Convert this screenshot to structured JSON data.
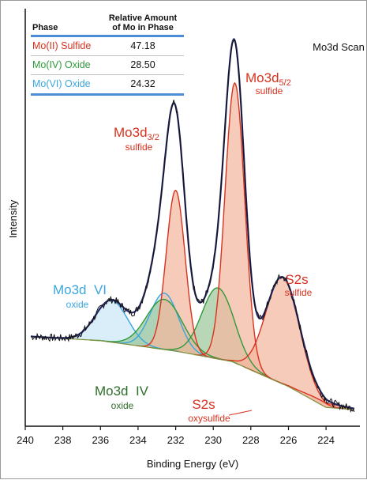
{
  "table": {
    "header_phase": "Phase",
    "header_amount_line1": "Relative Amount",
    "header_amount_line2": "of Mo in Phase",
    "rows": [
      {
        "phase": "Mo(II) Sulfide",
        "amount": "47.18",
        "color": "#d8321f"
      },
      {
        "phase": "Mo(IV) Oxide",
        "amount": "28.50",
        "color": "#2f9a3c"
      },
      {
        "phase": "Mo(VI) Oxide",
        "amount": "24.32",
        "color": "#3aa6dd"
      }
    ]
  },
  "chart_data": {
    "type": "area",
    "title": "Mo3d Scan",
    "xlabel": "Binding Energy (eV)",
    "ylabel": "Intensity",
    "x_reversed": true,
    "xlim": [
      240,
      222.2
    ],
    "ylim": [
      0,
      1
    ],
    "xticks": [
      "240",
      "238",
      "236",
      "234",
      "232",
      "230",
      "228",
      "226",
      "224"
    ],
    "xtick_values": [
      240,
      238,
      236,
      234,
      232,
      230,
      228,
      226,
      224
    ],
    "yticks_shown": false,
    "baseline": [
      [
        239.7,
        0.215
      ],
      [
        236,
        0.205
      ],
      [
        232,
        0.18
      ],
      [
        229,
        0.155
      ],
      [
        226,
        0.095
      ],
      [
        224,
        0.045
      ],
      [
        222.5,
        0.04
      ]
    ],
    "series": [
      {
        "label": "Mo(VI) oxide",
        "center": 235.4,
        "sigma": 0.85,
        "amplitude": 0.1,
        "color": "#3aa6dd",
        "fill": "#cbe8f6"
      },
      {
        "label": "Mo(VI) oxide",
        "center": 232.6,
        "sigma": 0.75,
        "amplitude": 0.135,
        "color": "#3aa6dd",
        "fill": "#cbe8f6"
      },
      {
        "label": "Mo(IV) oxide",
        "center": 232.6,
        "sigma": 0.95,
        "amplitude": 0.12,
        "color": "#2f9a3c",
        "fill": "#9cc79a"
      },
      {
        "label": "Mo(IV) oxide",
        "center": 229.75,
        "sigma": 0.85,
        "amplitude": 0.17,
        "color": "#2f9a3c",
        "fill": "#9cc79a"
      },
      {
        "label": "Mo(II) sulfide 3d3/2",
        "center": 232.0,
        "sigma": 0.5,
        "amplitude": 0.385,
        "color": "#d8321f",
        "fill": "#f4b79f"
      },
      {
        "label": "Mo(II) sulfide 3d5/2",
        "center": 228.85,
        "sigma": 0.52,
        "amplitude": 0.67,
        "color": "#d8321f",
        "fill": "#f4b79f"
      },
      {
        "label": "S2s sulfide",
        "center": 226.3,
        "sigma": 0.9,
        "amplitude": 0.255,
        "color": "#d8321f",
        "fill": "#f4b79f"
      },
      {
        "label": "S2s oxysulfide",
        "center": 224.2,
        "sigma": 1.0,
        "amplitude": 0.01,
        "color": "#d8321f",
        "fill": "#f4b79f"
      }
    ],
    "envelope": {
      "color": "#25286a"
    },
    "measured": {
      "color": "#111111"
    },
    "annotations": [
      {
        "id": "mo3d52",
        "main": "Mo3d",
        "sub": "5/2",
        "line2": "sulfide",
        "color": "#d8321f"
      },
      {
        "id": "mo3d32",
        "main": "Mo3d",
        "sub": "3/2",
        "line2": "sulfide",
        "color": "#d8321f"
      },
      {
        "id": "s2s-sulfide",
        "main": "S2s",
        "line2": "sulfide",
        "color": "#d8321f"
      },
      {
        "id": "mo3d-vi",
        "main": "Mo3d  VI",
        "line2": "oxide",
        "color": "#3aa6dd"
      },
      {
        "id": "mo3d-iv",
        "main": "Mo3d  IV",
        "line2": "oxide",
        "color": "#2f6e2a"
      },
      {
        "id": "s2s-oxysulfide",
        "main": "S2s",
        "line2": "oxysulfide",
        "color": "#d8321f"
      }
    ]
  }
}
